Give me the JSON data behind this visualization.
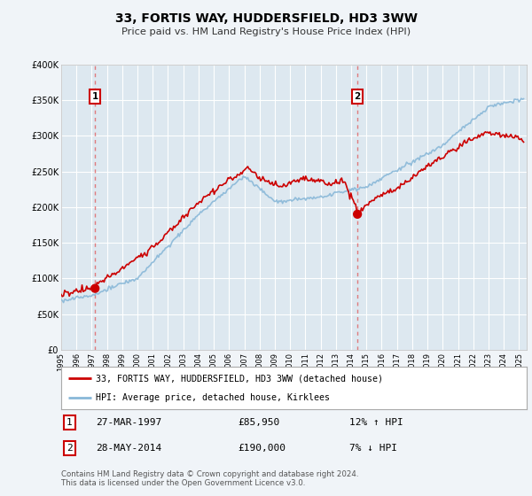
{
  "title": "33, FORTIS WAY, HUDDERSFIELD, HD3 3WW",
  "subtitle": "Price paid vs. HM Land Registry's House Price Index (HPI)",
  "legend_line1": "33, FORTIS WAY, HUDDERSFIELD, HD3 3WW (detached house)",
  "legend_line2": "HPI: Average price, detached house, Kirklees",
  "annotation1_date": "27-MAR-1997",
  "annotation1_price": "£85,950",
  "annotation1_hpi": "12% ↑ HPI",
  "annotation1_year": 1997.22,
  "annotation1_value": 85950,
  "annotation2_date": "28-MAY-2014",
  "annotation2_price": "£190,000",
  "annotation2_hpi": "7% ↓ HPI",
  "annotation2_year": 2014.41,
  "annotation2_value": 190000,
  "footer": "Contains HM Land Registry data © Crown copyright and database right 2024.\nThis data is licensed under the Open Government Licence v3.0.",
  "hpi_color": "#89b8d8",
  "price_color": "#cc0000",
  "dot_color": "#cc0000",
  "vline_color": "#e06060",
  "background_color": "#f0f4f8",
  "plot_bg_color": "#dde8f0",
  "grid_color": "#ffffff",
  "ylim": [
    0,
    400000
  ],
  "xlim_start": 1995,
  "xlim_end": 2025.5
}
